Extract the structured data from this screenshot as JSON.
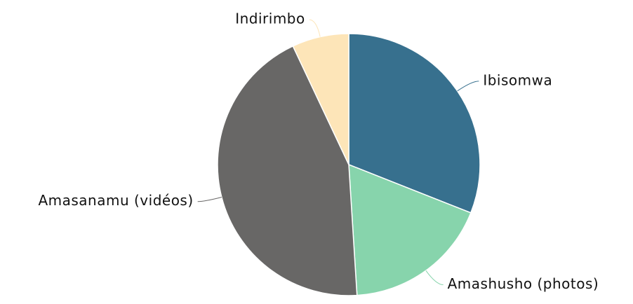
{
  "chart_data": {
    "type": "pie",
    "categories": [
      "Ibisomwa",
      "Amashusho (photos)",
      "Amasanamu (vidéos)",
      "Indirimbo"
    ],
    "values": [
      31,
      18,
      44,
      7
    ],
    "colors": [
      "#37708e",
      "#87d4ac",
      "#686766",
      "#fde5b8"
    ]
  }
}
